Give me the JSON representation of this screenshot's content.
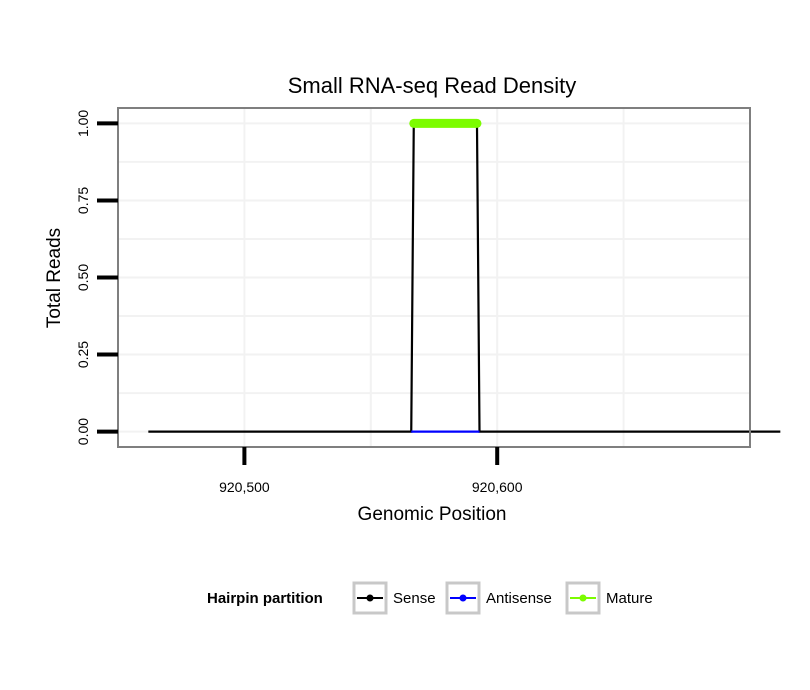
{
  "chart_data": {
    "type": "line",
    "title": "Small RNA-seq Read Density",
    "xlabel": "Genomic Position",
    "ylabel": "Total Reads",
    "xlim": [
      920450,
      920700
    ],
    "ylim": [
      -0.05,
      1.05
    ],
    "x_ticks": [
      920500,
      920600
    ],
    "x_tick_labels": [
      "920,500",
      "920,600"
    ],
    "y_ticks": [
      0,
      0.25,
      0.5,
      0.75,
      1.0
    ],
    "y_tick_labels": [
      "0.00",
      "0.25",
      "0.50",
      "0.75",
      "1.00"
    ],
    "series": [
      {
        "name": "Sense",
        "color": "#000000",
        "x": [
          920462,
          920566,
          920567,
          920592,
          920593,
          920712
        ],
        "y": [
          0,
          0,
          1,
          1,
          0,
          0
        ]
      },
      {
        "name": "Antisense",
        "color": "#0000ff",
        "x": [
          920566,
          920593
        ],
        "y": [
          0,
          0
        ]
      },
      {
        "name": "Mature",
        "color": "#7cfc00",
        "x": [
          920567,
          920592
        ],
        "y": [
          1,
          1
        ]
      }
    ],
    "legend": {
      "title": "Hairpin partition",
      "position": "bottom",
      "entries": [
        "Sense",
        "Antisense",
        "Mature"
      ]
    },
    "grid": true
  }
}
